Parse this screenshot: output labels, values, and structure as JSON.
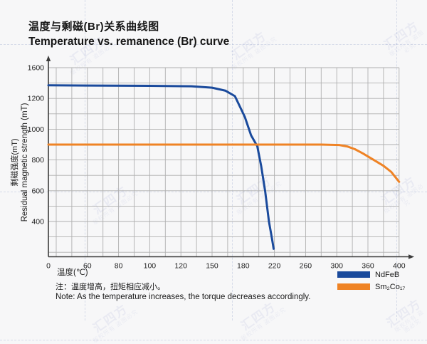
{
  "title": {
    "zh": "温度与剩磁(Br)关系曲线图",
    "en": "Temperature vs. remanence (Br) curve"
  },
  "axes": {
    "y_label_zh": "剩磁强度(mT)",
    "y_label_en": "Residual magnetic strength (mT)",
    "x_label": "温度(℃)"
  },
  "note": {
    "zh": "注：温度增高，扭矩相应减小。",
    "en": "Note: As the temperature increases, the torque decreases accordingly."
  },
  "legend": [
    {
      "label": "NdFeB",
      "color": "#1a4a9c"
    },
    {
      "label": "Sm₂Co₁₇",
      "color": "#ef8325"
    }
  ],
  "watermark": {
    "brand": "汇四方",
    "sub": "版权所有 盗图必究"
  },
  "colors": {
    "background": "#f7f7f8",
    "grid": "#afafaf",
    "axis": "#3c3c3c",
    "tick_text": "#222222",
    "ndfeb_blue": "#1a4a9c",
    "smco_orange": "#ef8325"
  },
  "chart_data": {
    "type": "line",
    "title": "Temperature vs. remanence (Br) curve / 温度与剩磁(Br)关系曲线图",
    "xlabel": "温度(℃)",
    "ylabel": "Residual magnetic strength (mT) / 剩磁强度(mT)",
    "x_ticks": [
      0,
      60,
      80,
      100,
      120,
      150,
      180,
      220,
      260,
      300,
      360,
      400
    ],
    "x_tick_labels": [
      "0",
      "60",
      "80",
      "100",
      "120",
      "150",
      "180",
      "220",
      "260",
      "300",
      "360",
      "400"
    ],
    "y_ticks": [
      1600,
      1200,
      1000,
      800,
      600,
      400,
      0
    ],
    "y_tick_labels": [
      "1600",
      "1200",
      "1000",
      "800",
      "600",
      "400",
      "0"
    ],
    "ylim": [
      0,
      1600
    ],
    "xlim": [
      0,
      400
    ],
    "grid": true,
    "legend_position": "bottom-right",
    "axis_note": "tick labels are evenly spaced on the axes even though their values are non-uniform",
    "series": [
      {
        "name": "NdFeB",
        "color": "#1a4a9c",
        "points": [
          [
            0,
            1370
          ],
          [
            60,
            1368
          ],
          [
            100,
            1364
          ],
          [
            130,
            1358
          ],
          [
            150,
            1340
          ],
          [
            163,
            1300
          ],
          [
            172,
            1230
          ],
          [
            182,
            1080
          ],
          [
            190,
            960
          ],
          [
            198,
            890
          ],
          [
            203,
            760
          ],
          [
            208,
            600
          ],
          [
            213,
            400
          ],
          [
            217,
            200
          ],
          [
            219,
            90
          ]
        ]
      },
      {
        "name": "Sm₂Co₁₇",
        "color": "#ef8325",
        "points": [
          [
            0,
            900
          ],
          [
            150,
            900
          ],
          [
            280,
            900
          ],
          [
            305,
            897
          ],
          [
            320,
            888
          ],
          [
            335,
            870
          ],
          [
            350,
            843
          ],
          [
            365,
            808
          ],
          [
            380,
            762
          ],
          [
            390,
            722
          ],
          [
            400,
            658
          ]
        ]
      }
    ]
  }
}
